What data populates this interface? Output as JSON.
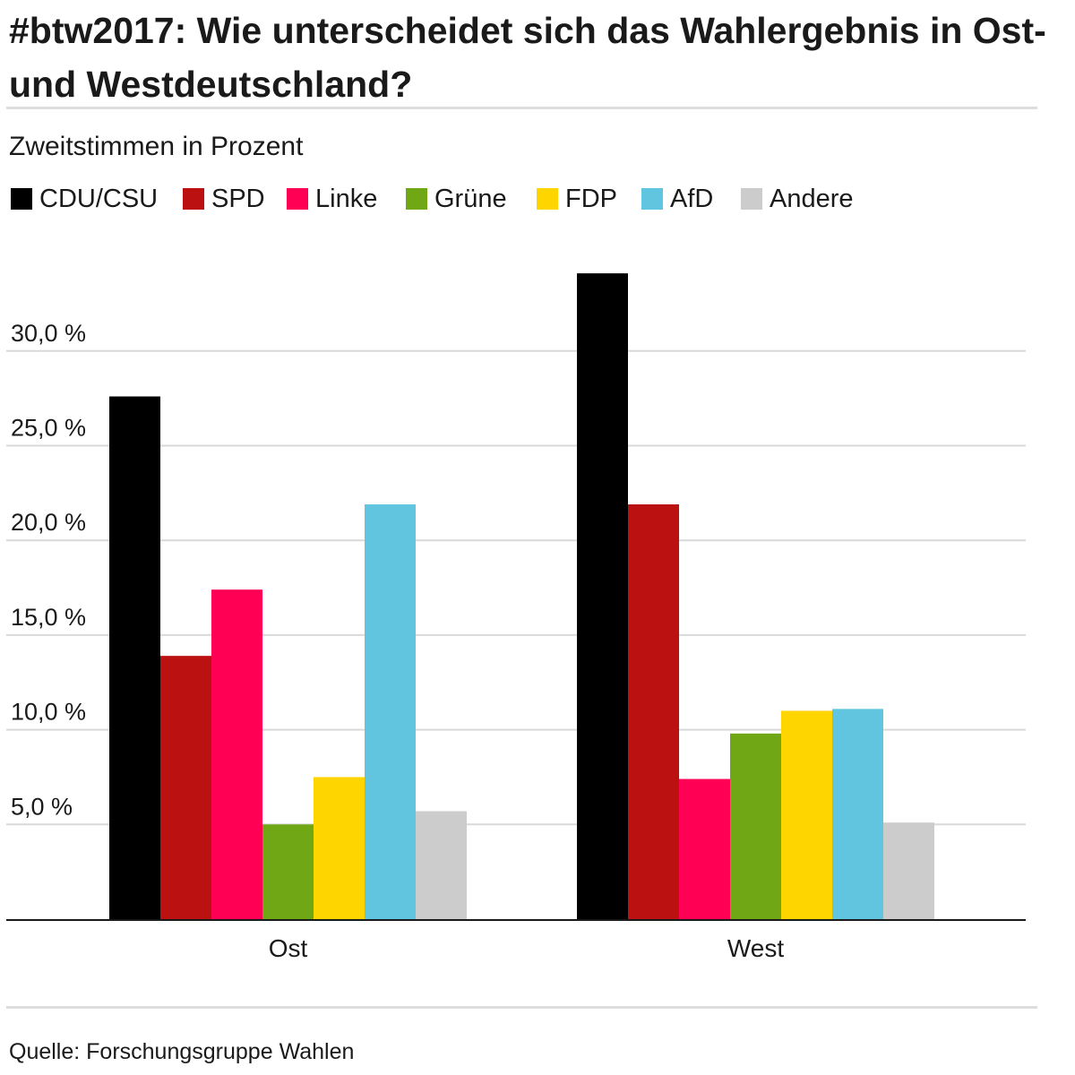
{
  "title": "#btw2017: Wie unterscheidet sich das Wahlergebnis in Ost- und Westdeutschland?",
  "subtitle": "Zweitstimmen in Prozent",
  "source": "Quelle: Forschungsgruppe Wahlen",
  "chart_data": {
    "type": "bar",
    "title": "#btw2017: Wie unterscheidet sich das Wahlergebnis in Ost- und Westdeutschland?",
    "subtitle": "Zweitstimmen in Prozent",
    "xlabel": "",
    "ylabel": "",
    "ylim": [
      0,
      35
    ],
    "yticks": [
      5,
      10,
      15,
      20,
      25,
      30
    ],
    "ytick_labels": [
      "5,0 %",
      "10,0 %",
      "15,0 %",
      "20,0 %",
      "25,0 %",
      "30,0 %"
    ],
    "grid": true,
    "legend_position": "top-left",
    "categories": [
      "Ost",
      "West"
    ],
    "series": [
      {
        "name": "CDU/CSU",
        "color": "#000000",
        "values": [
          27.6,
          34.1
        ]
      },
      {
        "name": "SPD",
        "color": "#bb1111",
        "values": [
          13.9,
          21.9
        ]
      },
      {
        "name": "Linke",
        "color": "#ff0055",
        "values": [
          17.4,
          7.4
        ]
      },
      {
        "name": "Grüne",
        "color": "#6fa814",
        "values": [
          5.0,
          9.8
        ]
      },
      {
        "name": "FDP",
        "color": "#ffd500",
        "values": [
          7.5,
          11.0
        ]
      },
      {
        "name": "AfD",
        "color": "#62c5e0",
        "values": [
          21.9,
          11.1
        ]
      },
      {
        "name": "Andere",
        "color": "#cccccc",
        "values": [
          5.7,
          5.1
        ]
      }
    ]
  }
}
